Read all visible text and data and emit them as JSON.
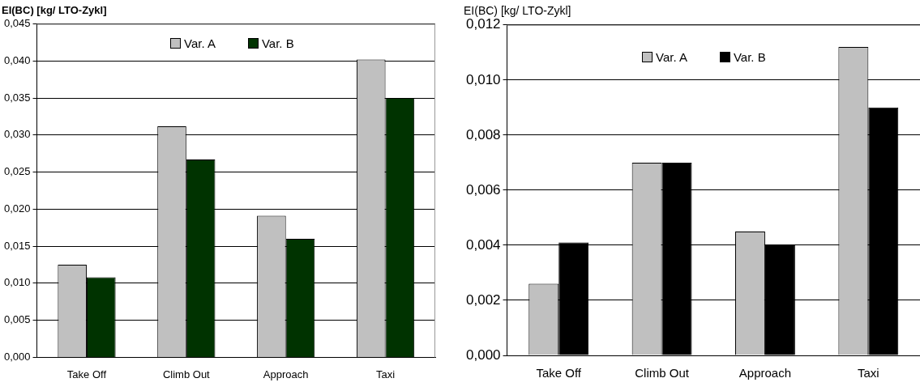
{
  "chart_data": [
    {
      "type": "bar",
      "title": "EI(BC) [kg/ LTO-Zykl]",
      "categories": [
        "Take Off",
        "Climb Out",
        "Approach",
        "Taxi"
      ],
      "series": [
        {
          "name": "Var. A",
          "color": "#c0c0c0",
          "values": [
            0.0125,
            0.0312,
            0.0191,
            0.0402
          ]
        },
        {
          "name": "Var. B",
          "color": "#003300",
          "values": [
            0.0108,
            0.0267,
            0.016,
            0.035
          ]
        }
      ],
      "ylim": [
        0,
        0.045
      ],
      "yticks": [
        {
          "value": 0,
          "label": "0,000"
        },
        {
          "value": 0.005,
          "label": "0,005"
        },
        {
          "value": 0.01,
          "label": "0,010"
        },
        {
          "value": 0.015,
          "label": "0,015"
        },
        {
          "value": 0.02,
          "label": "0,020"
        },
        {
          "value": 0.025,
          "label": "0,025"
        },
        {
          "value": 0.03,
          "label": "0,030"
        },
        {
          "value": 0.035,
          "label": "0,035"
        },
        {
          "value": 0.04,
          "label": "0,040"
        },
        {
          "value": 0.045,
          "label": "0,045"
        }
      ],
      "grid": "y",
      "legend": "top"
    },
    {
      "type": "bar",
      "title": "EI(BC) [kg/ LTO-Zykl]",
      "categories": [
        "Take Off",
        "Climb Out",
        "Approach",
        "Taxi"
      ],
      "series": [
        {
          "name": "Var. A",
          "color": "#c0c0c0",
          "values": [
            0.0026,
            0.007,
            0.0045,
            0.0112
          ]
        },
        {
          "name": "Var. B",
          "color": "#000000",
          "values": [
            0.0041,
            0.007,
            0.004,
            0.009
          ]
        }
      ],
      "ylim": [
        0,
        0.012
      ],
      "yticks": [
        {
          "value": 0,
          "label": "0,000"
        },
        {
          "value": 0.002,
          "label": "0,002"
        },
        {
          "value": 0.004,
          "label": "0,004"
        },
        {
          "value": 0.006,
          "label": "0,006"
        },
        {
          "value": 0.008,
          "label": "0,008"
        },
        {
          "value": 0.01,
          "label": "0,010"
        },
        {
          "value": 0.012,
          "label": "0,012"
        }
      ],
      "grid": "y",
      "legend": "top"
    }
  ]
}
